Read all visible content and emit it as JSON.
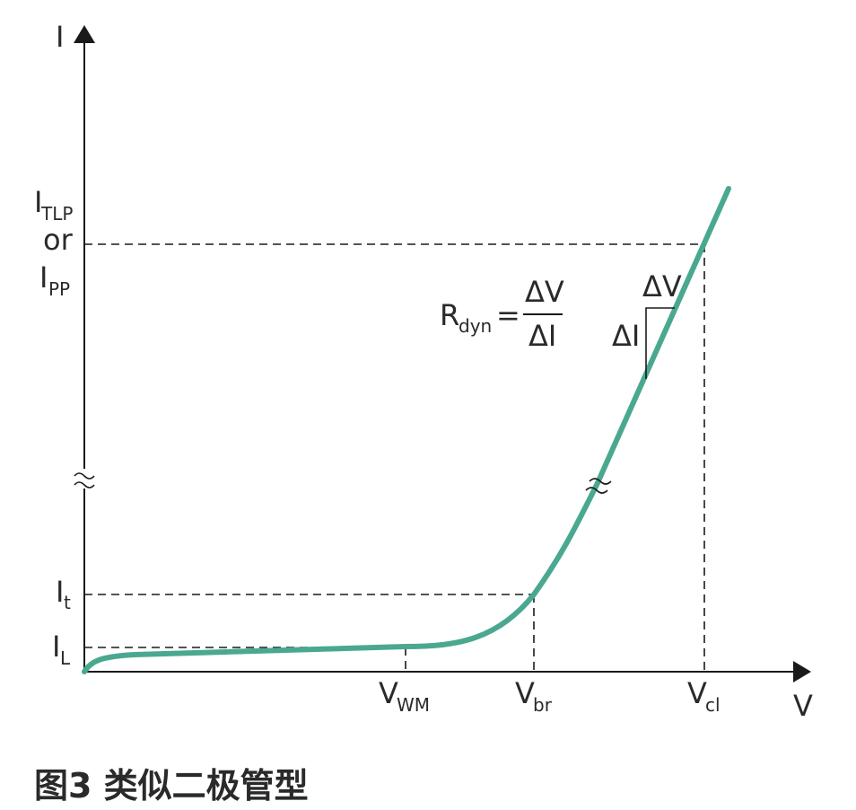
{
  "axes": {
    "y_label": "I",
    "x_label": "V"
  },
  "y_ticks": {
    "i_tlp_main": "I",
    "i_tlp_sub": "TLP",
    "or": "or",
    "i_pp_main": "I",
    "i_pp_sub": "PP",
    "i_t_main": "I",
    "i_t_sub": "t",
    "i_l_main": "I",
    "i_l_sub": "L"
  },
  "x_ticks": {
    "v_wm_main": "V",
    "v_wm_sub": "WM",
    "v_br_main": "V",
    "v_br_sub": "br",
    "v_cl_main": "V",
    "v_cl_sub": "cl"
  },
  "formula": {
    "lhs_main": "R",
    "lhs_sub": "dyn",
    "equals": "=",
    "numerator": "ΔV",
    "denominator": "ΔI"
  },
  "slope_labels": {
    "delta_v": "ΔV",
    "delta_i": "ΔI"
  },
  "caption": "图3 类似二极管型",
  "colors": {
    "curve": "#4aa891",
    "axis": "#1a1a1a",
    "text": "#2a2a2a"
  }
}
